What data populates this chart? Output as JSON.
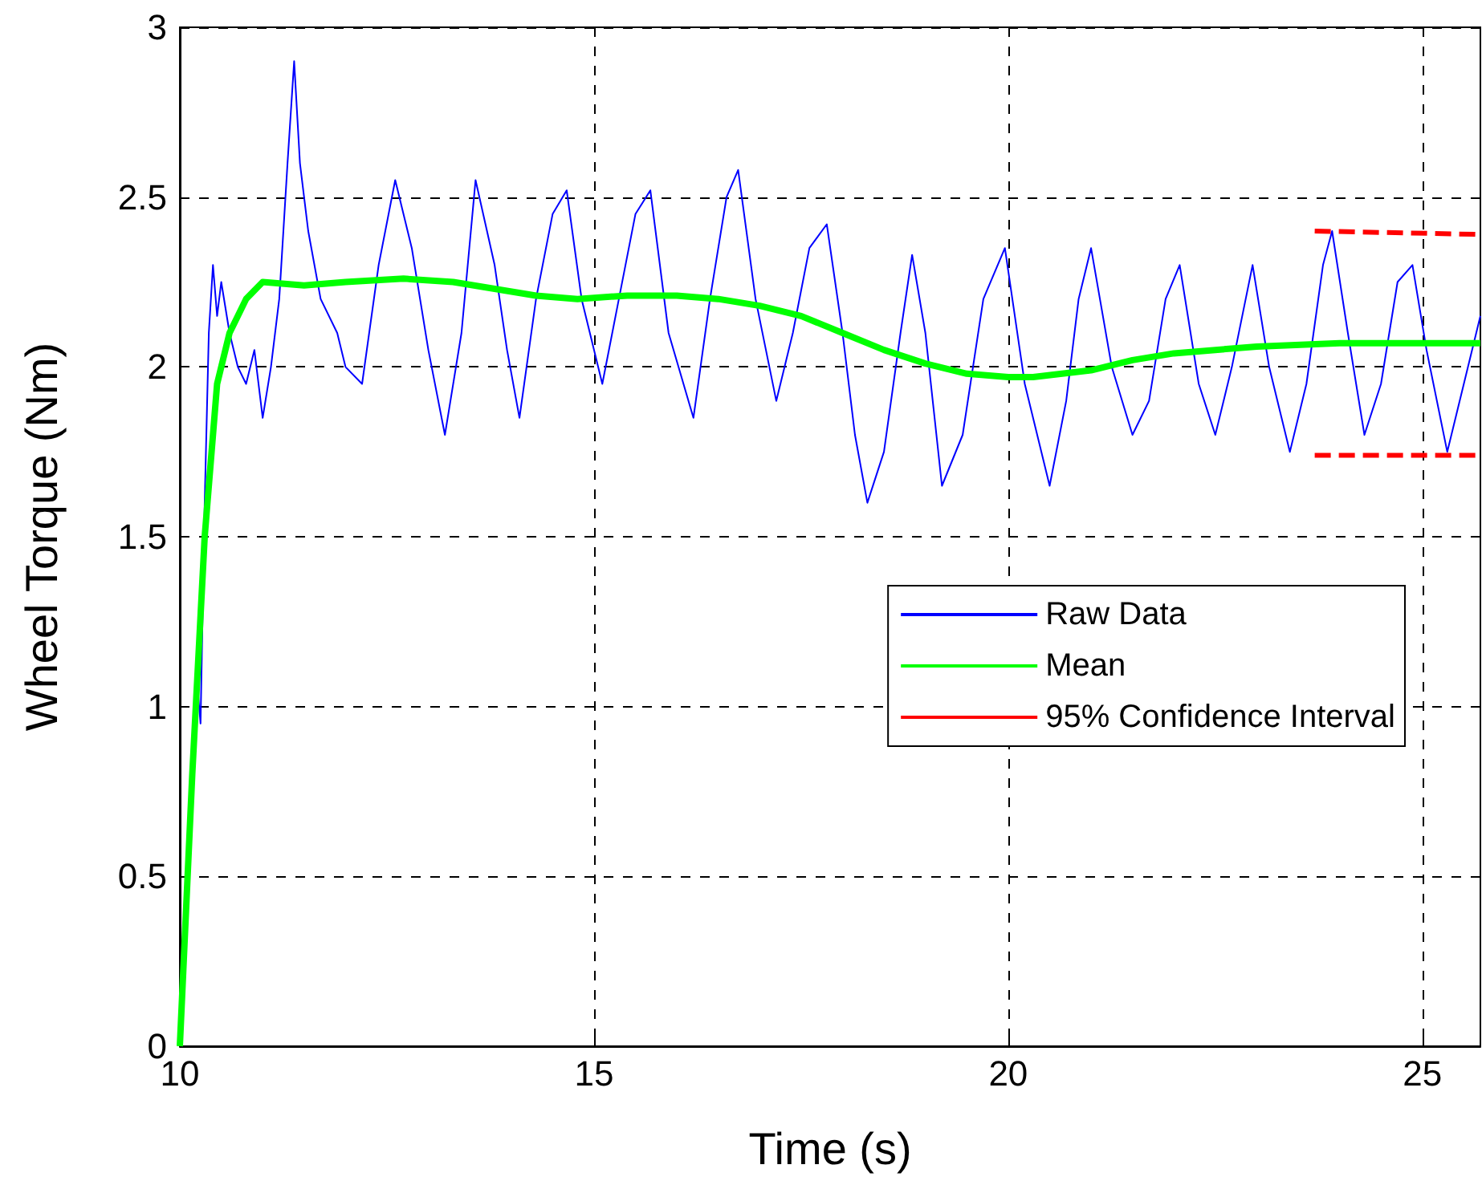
{
  "chart_data": {
    "type": "line",
    "xlabel": "Time (s)",
    "ylabel": "Wheel Torque (Nm)",
    "xlim": [
      10,
      25.7
    ],
    "xticks": [
      10,
      15,
      20,
      25
    ],
    "ylim": [
      0,
      3
    ],
    "yticks": [
      0,
      0.5,
      1,
      1.5,
      2,
      2.5,
      3
    ],
    "grid": true,
    "legend": "right",
    "series": [
      {
        "name": "Raw Data",
        "color": "#0000ff",
        "line_style": "solid",
        "x": [
          10.0,
          10.1,
          10.2,
          10.25,
          10.3,
          10.35,
          10.4,
          10.45,
          10.5,
          10.6,
          10.7,
          10.8,
          10.9,
          11.0,
          11.1,
          11.2,
          11.3,
          11.38,
          11.45,
          11.55,
          11.7,
          11.9,
          12.0,
          12.2,
          12.4,
          12.6,
          12.8,
          13.0,
          13.2,
          13.4,
          13.57,
          13.8,
          13.95,
          14.1,
          14.3,
          14.5,
          14.67,
          14.85,
          15.1,
          15.3,
          15.5,
          15.68,
          15.9,
          16.2,
          16.4,
          16.6,
          16.74,
          16.95,
          17.2,
          17.4,
          17.6,
          17.81,
          18.0,
          18.15,
          18.3,
          18.5,
          18.7,
          18.84,
          19.0,
          19.2,
          19.45,
          19.7,
          19.96,
          20.2,
          20.5,
          20.7,
          20.85,
          21.0,
          21.25,
          21.5,
          21.7,
          21.9,
          22.07,
          22.3,
          22.5,
          22.7,
          22.95,
          23.15,
          23.4,
          23.6,
          23.8,
          23.91,
          24.1,
          24.3,
          24.5,
          24.7,
          24.88,
          25.05,
          25.3,
          25.5,
          25.7
        ],
        "values": [
          0,
          0.6,
          1.1,
          0.95,
          1.6,
          2.1,
          2.3,
          2.15,
          2.25,
          2.1,
          2.0,
          1.95,
          2.05,
          1.85,
          2.0,
          2.2,
          2.6,
          2.9,
          2.6,
          2.4,
          2.2,
          2.1,
          2.0,
          1.95,
          2.3,
          2.55,
          2.35,
          2.05,
          1.8,
          2.1,
          2.55,
          2.3,
          2.05,
          1.85,
          2.2,
          2.45,
          2.52,
          2.2,
          1.95,
          2.2,
          2.45,
          2.52,
          2.1,
          1.85,
          2.2,
          2.5,
          2.58,
          2.2,
          1.9,
          2.1,
          2.35,
          2.42,
          2.1,
          1.8,
          1.6,
          1.75,
          2.1,
          2.33,
          2.1,
          1.65,
          1.8,
          2.2,
          2.35,
          1.95,
          1.65,
          1.9,
          2.2,
          2.35,
          2.0,
          1.8,
          1.9,
          2.2,
          2.3,
          1.95,
          1.8,
          2.0,
          2.3,
          2.0,
          1.75,
          1.95,
          2.3,
          2.4,
          2.1,
          1.8,
          1.95,
          2.25,
          2.3,
          2.05,
          1.75,
          1.95,
          2.15
        ]
      },
      {
        "name": "Mean",
        "color": "#00ff00",
        "line_style": "solid",
        "x": [
          10,
          10.15,
          10.3,
          10.45,
          10.6,
          10.8,
          11,
          11.5,
          12,
          12.7,
          13.3,
          13.8,
          14.3,
          14.8,
          15.4,
          16,
          16.5,
          17,
          17.5,
          18,
          18.5,
          19,
          19.5,
          20,
          20.3,
          21,
          21.5,
          22,
          23,
          24,
          25,
          25.7
        ],
        "values": [
          0,
          0.8,
          1.5,
          1.95,
          2.1,
          2.2,
          2.25,
          2.24,
          2.25,
          2.26,
          2.25,
          2.23,
          2.21,
          2.2,
          2.21,
          2.21,
          2.2,
          2.18,
          2.15,
          2.1,
          2.05,
          2.01,
          1.98,
          1.97,
          1.97,
          1.99,
          2.02,
          2.04,
          2.06,
          2.07,
          2.07,
          2.07
        ]
      },
      {
        "name": "95% Confidence Interval",
        "color": "#ff0000",
        "line_style": "dashed",
        "x": [
          23.7,
          25.7
        ],
        "values": [
          2.4,
          2.39
        ]
      },
      {
        "color": "#ff0000",
        "line_style": "dashed",
        "x": [
          23.7,
          25.7
        ],
        "values": [
          1.74,
          1.74
        ]
      }
    ]
  }
}
